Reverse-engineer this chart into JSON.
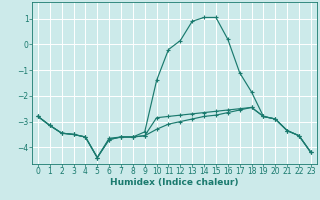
{
  "xlabel": "Humidex (Indice chaleur)",
  "bg_color": "#cceaea",
  "grid_color": "#ffffff",
  "line_color": "#1a7a6e",
  "xlim": [
    -0.5,
    23.5
  ],
  "ylim": [
    -4.65,
    1.65
  ],
  "yticks": [
    1,
    0,
    -1,
    -2,
    -3,
    -4
  ],
  "xticks": [
    0,
    1,
    2,
    3,
    4,
    5,
    6,
    7,
    8,
    9,
    10,
    11,
    12,
    13,
    14,
    15,
    16,
    17,
    18,
    19,
    20,
    21,
    22,
    23
  ],
  "line1_x": [
    0,
    1,
    2,
    3,
    4,
    5,
    6,
    7,
    8,
    9,
    10,
    11,
    12,
    13,
    14,
    15,
    16,
    17,
    18,
    19,
    20,
    21,
    22,
    23
  ],
  "line1_y": [
    -2.8,
    -3.15,
    -3.45,
    -3.5,
    -3.6,
    -4.4,
    -3.65,
    -3.6,
    -3.6,
    -3.55,
    -2.85,
    -2.8,
    -2.75,
    -2.7,
    -2.65,
    -2.6,
    -2.55,
    -2.5,
    -2.45,
    -2.8,
    -2.9,
    -3.35,
    -3.55,
    -4.2
  ],
  "line2_x": [
    0,
    1,
    2,
    3,
    4,
    5,
    6,
    7,
    8,
    9,
    10,
    11,
    12,
    13,
    14,
    15,
    16,
    17,
    18,
    19,
    20,
    21,
    22,
    23
  ],
  "line2_y": [
    -2.8,
    -3.15,
    -3.45,
    -3.5,
    -3.6,
    -4.4,
    -3.7,
    -3.6,
    -3.6,
    -3.4,
    -1.4,
    -0.2,
    0.15,
    0.9,
    1.05,
    1.05,
    0.2,
    -1.1,
    -1.85,
    -2.8,
    -2.9,
    -3.35,
    -3.55,
    -4.2
  ],
  "line3_x": [
    0,
    1,
    2,
    3,
    4,
    5,
    6,
    7,
    8,
    9,
    10,
    11,
    12,
    13,
    14,
    15,
    16,
    17,
    18,
    19,
    20,
    21,
    22,
    23
  ],
  "line3_y": [
    -2.8,
    -3.15,
    -3.45,
    -3.5,
    -3.6,
    -4.4,
    -3.7,
    -3.6,
    -3.6,
    -3.55,
    -3.3,
    -3.1,
    -3.0,
    -2.9,
    -2.8,
    -2.75,
    -2.65,
    -2.55,
    -2.45,
    -2.8,
    -2.9,
    -3.35,
    -3.55,
    -4.2
  ]
}
